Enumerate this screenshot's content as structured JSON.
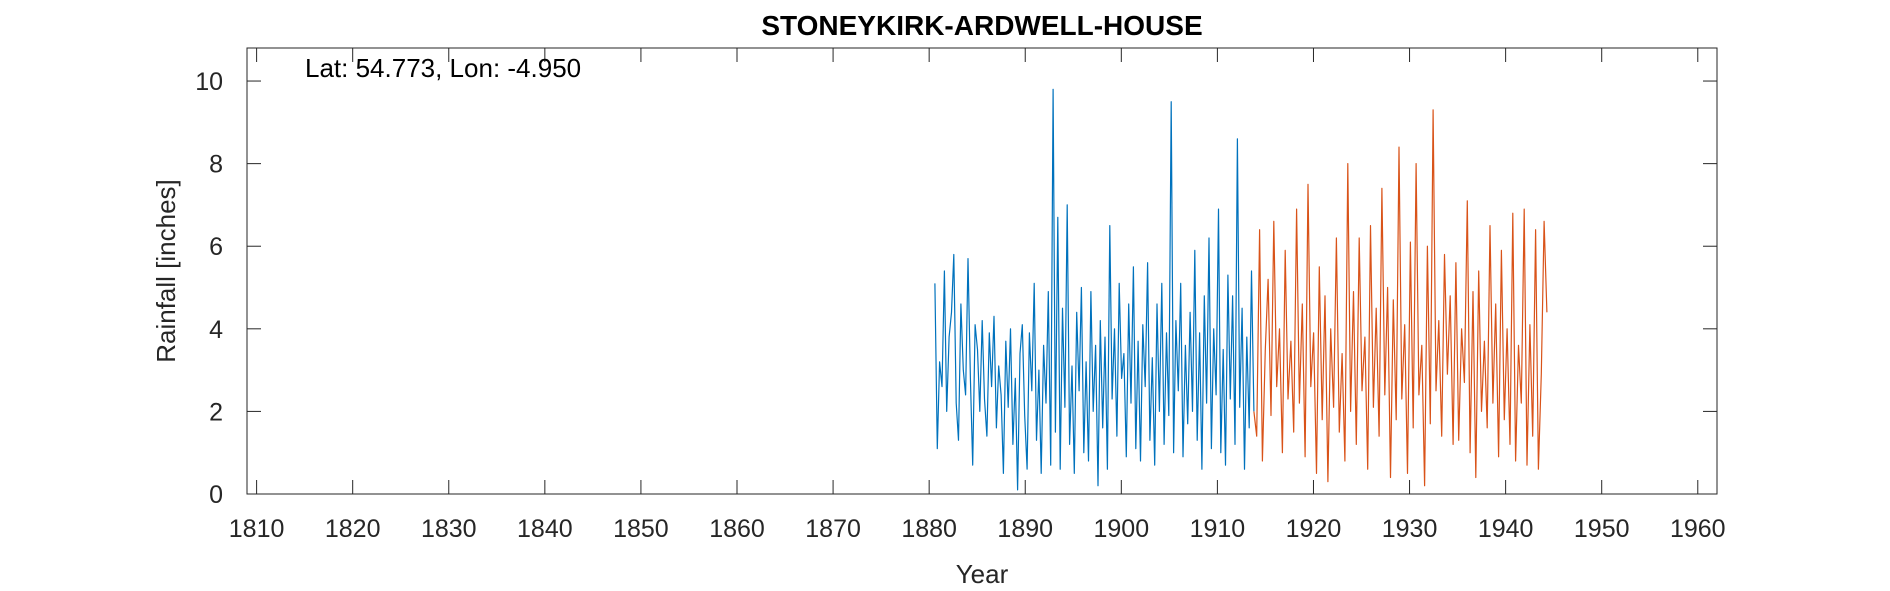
{
  "chart_data": {
    "type": "line",
    "title": "STONEYKIRK-ARDWELL-HOUSE",
    "annotation": "Lat: 54.773, Lon: -4.950",
    "xlabel": "Year",
    "ylabel": "Rainfall [inches]",
    "xlim": [
      1809,
      1962
    ],
    "ylim": [
      0,
      10.8
    ],
    "xticks": [
      1810,
      1820,
      1830,
      1840,
      1850,
      1860,
      1870,
      1880,
      1890,
      1900,
      1910,
      1920,
      1930,
      1940,
      1950,
      1960
    ],
    "yticks": [
      0,
      2,
      4,
      6,
      8,
      10
    ],
    "grid": false,
    "series": [
      {
        "color": "#0072BD",
        "x_start": 1880.6,
        "x_end": 1913.8,
        "values": [
          5.1,
          1.1,
          3.2,
          2.6,
          5.4,
          2.0,
          3.8,
          4.4,
          5.8,
          2.2,
          1.3,
          4.6,
          3.0,
          2.4,
          5.7,
          2.8,
          0.7,
          4.1,
          3.5,
          2.0,
          4.2,
          2.3,
          1.4,
          3.9,
          2.6,
          4.3,
          1.6,
          3.1,
          2.4,
          0.5,
          3.7,
          2.1,
          4.0,
          1.2,
          2.8,
          0.1,
          3.4,
          4.1,
          1.9,
          0.6,
          3.9,
          2.5,
          5.1,
          1.3,
          3.0,
          0.5,
          3.6,
          2.2,
          4.9,
          0.7,
          9.8,
          1.5,
          6.7,
          0.6,
          4.5,
          2.1,
          7.0,
          1.2,
          3.1,
          0.5,
          4.4,
          2.5,
          5.0,
          1.0,
          3.2,
          0.8,
          4.9,
          2.0,
          3.6,
          0.2,
          4.2,
          1.6,
          3.8,
          0.6,
          6.5,
          2.3,
          4.0,
          1.4,
          5.1,
          2.8,
          3.4,
          0.9,
          4.6,
          2.2,
          5.5,
          1.1,
          3.7,
          0.8,
          4.1,
          2.6,
          5.6,
          1.3,
          3.3,
          0.7,
          4.6,
          2.0,
          5.1,
          1.2,
          3.9,
          1.9,
          9.5,
          1.0,
          4.2,
          2.5,
          5.1,
          0.9,
          3.6,
          1.7,
          4.4,
          2.0,
          5.9,
          1.3,
          3.9,
          0.6,
          4.8,
          2.2,
          6.2,
          1.1,
          4.0,
          2.4,
          6.9,
          1.0,
          3.5,
          0.7,
          5.3,
          2.3,
          4.8,
          1.2,
          8.6,
          2.1,
          4.5,
          0.6,
          3.8,
          1.6,
          5.4,
          2.0
        ]
      },
      {
        "color": "#D95319",
        "x_start": 1913.8,
        "x_end": 1944.3,
        "values": [
          2.0,
          1.4,
          6.4,
          0.8,
          3.5,
          5.2,
          1.9,
          6.6,
          2.6,
          4.0,
          1.0,
          5.9,
          2.3,
          3.7,
          1.5,
          6.9,
          2.2,
          4.6,
          0.9,
          7.5,
          2.6,
          3.9,
          0.5,
          5.5,
          1.8,
          4.8,
          0.3,
          4.0,
          2.1,
          6.2,
          1.5,
          3.4,
          0.8,
          8.0,
          2.0,
          4.9,
          1.2,
          6.2,
          2.5,
          3.8,
          0.6,
          6.5,
          2.1,
          4.5,
          1.4,
          7.4,
          2.4,
          5.0,
          0.4,
          4.7,
          1.8,
          8.4,
          2.3,
          4.1,
          0.5,
          6.1,
          1.6,
          8.0,
          2.4,
          3.6,
          0.2,
          6.0,
          1.7,
          9.3,
          2.5,
          4.2,
          1.4,
          5.8,
          2.9,
          4.8,
          1.2,
          5.6,
          1.3,
          4.0,
          2.7,
          7.1,
          1.0,
          4.9,
          0.4,
          5.4,
          2.0,
          3.7,
          1.6,
          6.5,
          2.2,
          4.6,
          0.9,
          5.9,
          1.8,
          4.0,
          1.2,
          6.8,
          0.8,
          3.6,
          2.2,
          6.9,
          0.7,
          4.1,
          1.4,
          6.4,
          0.6,
          2.9,
          6.6,
          4.4
        ]
      }
    ]
  }
}
